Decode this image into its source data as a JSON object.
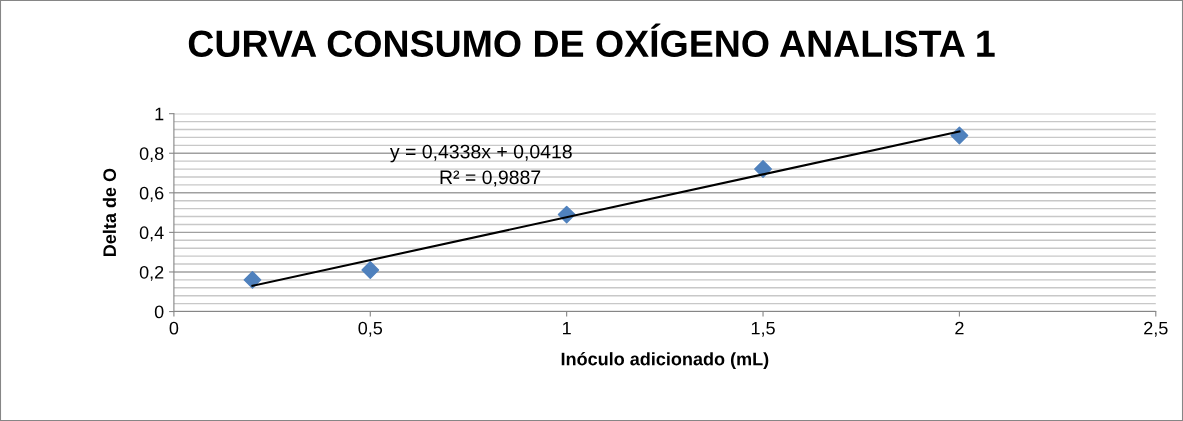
{
  "chart_data": {
    "type": "scatter",
    "title": "CURVA CONSUMO DE OXÍGENO ANALISTA 1",
    "xlabel": "Inóculo adicionado (mL)",
    "ylabel": "Delta de O",
    "x": [
      0.2,
      0.5,
      1,
      1.5,
      2
    ],
    "series": [
      {
        "color": "#4f81bd",
        "values": [
          0.16,
          0.21,
          0.49,
          0.72,
          0.89
        ],
        "marker": "diamond"
      },
      {
        "type": "line",
        "color": "#000000",
        "x": [
          0.2,
          2
        ],
        "values": [
          0.13,
          0.91
        ],
        "marker": "none",
        "line_style": "solid"
      }
    ],
    "annotations": [
      "y = 0,4338x + 0,0418",
      "R² = 0,9887"
    ],
    "xlim": [
      0,
      2.5
    ],
    "xticks": [
      0,
      {
        "value": 0.5,
        "label": "0,5"
      },
      1,
      {
        "value": 1.5,
        "label": "1,5"
      },
      2,
      {
        "value": 2.5,
        "label": "2,5"
      }
    ],
    "ylim": [
      0,
      1
    ],
    "yticks": [
      0,
      {
        "value": 0.04,
        "label": null
      },
      {
        "value": 0.08,
        "label": null
      },
      {
        "value": 0.12,
        "label": null
      },
      {
        "value": 0.16,
        "label": null
      },
      {
        "value": 0.2,
        "label": "0,2"
      },
      {
        "value": 0.24,
        "label": null
      },
      {
        "value": 0.28,
        "label": null
      },
      {
        "value": 0.32,
        "label": null
      },
      {
        "value": 0.36,
        "label": null
      },
      {
        "value": 0.4,
        "label": "0,4"
      },
      {
        "value": 0.44,
        "label": null
      },
      {
        "value": 0.48,
        "label": null
      },
      {
        "value": 0.52,
        "label": null
      },
      {
        "value": 0.56,
        "label": null
      },
      {
        "value": 0.6,
        "label": "0,6"
      },
      {
        "value": 0.64,
        "label": null
      },
      {
        "value": 0.68,
        "label": null
      },
      {
        "value": 0.72,
        "label": null
      },
      {
        "value": 0.76,
        "label": null
      },
      {
        "value": 0.8,
        "label": "0,8"
      },
      {
        "value": 0.84,
        "label": null
      },
      {
        "value": 0.88,
        "label": null
      },
      {
        "value": 0.92,
        "label": null
      },
      {
        "value": 0.96,
        "label": null
      },
      1
    ],
    "grid": "y",
    "legend": false
  }
}
